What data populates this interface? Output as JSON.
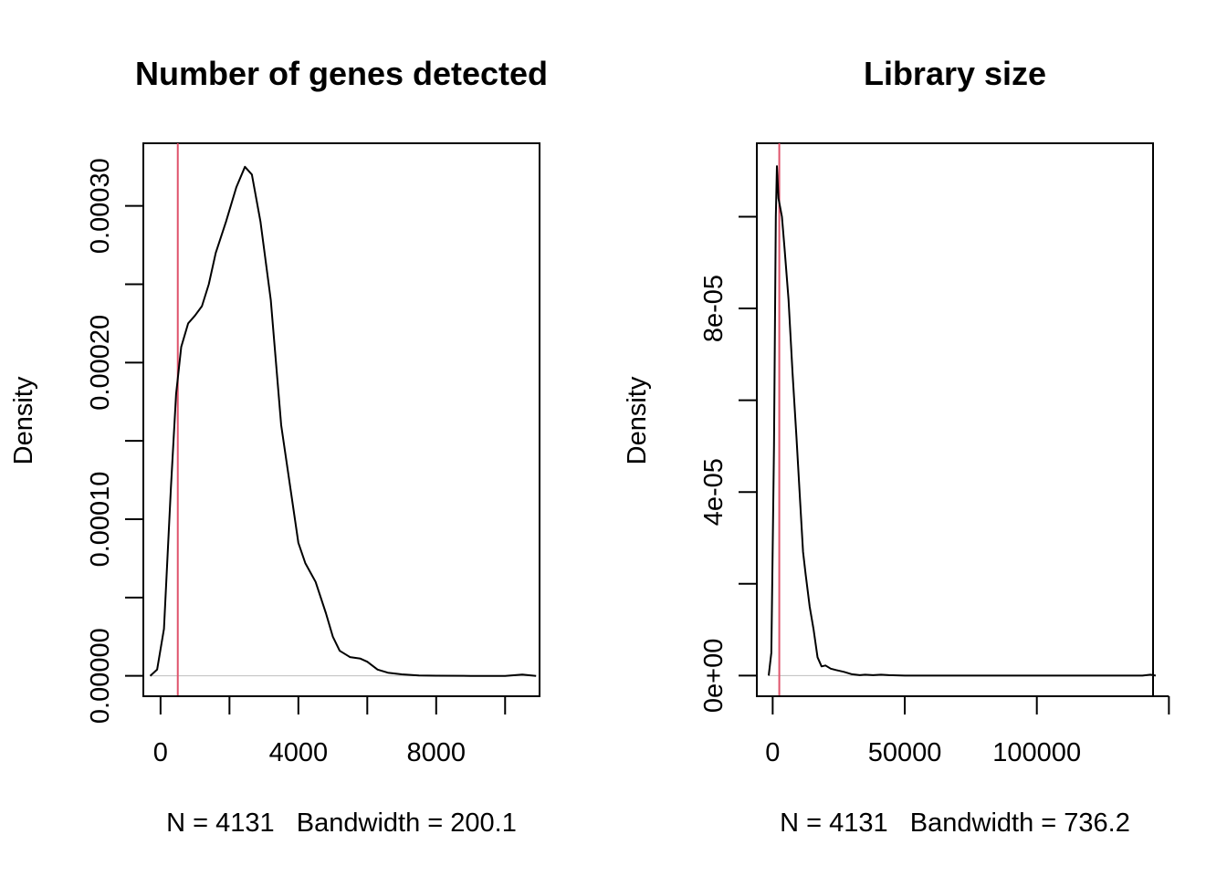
{
  "chart_data": [
    {
      "type": "area",
      "title": "Number of genes detected",
      "xlabel": "N = 4131   Bandwidth = 200.1",
      "ylabel": "Density",
      "xlim": [
        -500,
        11000
      ],
      "ylim": [
        -1.3e-05,
        0.00034
      ],
      "x_ticks": [
        {
          "value": 0,
          "label": "0"
        },
        {
          "value": 2000,
          "label": ""
        },
        {
          "value": 4000,
          "label": "4000"
        },
        {
          "value": 6000,
          "label": ""
        },
        {
          "value": 8000,
          "label": "8000"
        },
        {
          "value": 10000,
          "label": ""
        }
      ],
      "y_ticks": [
        {
          "value": 0,
          "label": "0.00000"
        },
        {
          "value": 5e-05,
          "label": ""
        },
        {
          "value": 0.0001,
          "label": "0.00010"
        },
        {
          "value": 0.00015,
          "label": ""
        },
        {
          "value": 0.0002,
          "label": "0.00020"
        },
        {
          "value": 0.00025,
          "label": ""
        },
        {
          "value": 0.0003,
          "label": "0.00030"
        }
      ],
      "vline": {
        "x": 500,
        "color": "#DF536B"
      },
      "line_color": "#000000",
      "baseline_color": "#BEBEBE",
      "series": [
        {
          "points": [
            [
              -300,
              0
            ],
            [
              -100,
              4e-06
            ],
            [
              100,
              3e-05
            ],
            [
              300,
              0.00012
            ],
            [
              450,
              0.00018
            ],
            [
              600,
              0.00021
            ],
            [
              800,
              0.000225
            ],
            [
              1000,
              0.00023
            ],
            [
              1200,
              0.000236
            ],
            [
              1400,
              0.00025
            ],
            [
              1600,
              0.00027
            ],
            [
              1900,
              0.00029
            ],
            [
              2200,
              0.000312
            ],
            [
              2450,
              0.000325
            ],
            [
              2650,
              0.00032
            ],
            [
              2900,
              0.00029
            ],
            [
              3200,
              0.00024
            ],
            [
              3500,
              0.00016
            ],
            [
              3800,
              0.000115
            ],
            [
              4000,
              8.5e-05
            ],
            [
              4200,
              7.2e-05
            ],
            [
              4500,
              6e-05
            ],
            [
              4800,
              4e-05
            ],
            [
              5000,
              2.5e-05
            ],
            [
              5200,
              1.6e-05
            ],
            [
              5500,
              1.2e-05
            ],
            [
              5800,
              1.1e-05
            ],
            [
              6000,
              9e-06
            ],
            [
              6300,
              4e-06
            ],
            [
              6600,
              2e-06
            ],
            [
              7000,
              1e-06
            ],
            [
              7500,
              3e-07
            ],
            [
              8000,
              1e-07
            ],
            [
              9000,
              0
            ],
            [
              10000,
              0
            ],
            [
              10500,
              8e-07
            ],
            [
              10900,
              0
            ]
          ]
        }
      ]
    },
    {
      "type": "area",
      "title": "Library size",
      "xlabel": "N = 4131   Bandwidth = 736.2",
      "ylabel": "Density",
      "xlim": [
        -6000,
        144000
      ],
      "ylim": [
        -4.5e-06,
        0.000116
      ],
      "x_ticks": [
        {
          "value": 0,
          "label": "0"
        },
        {
          "value": 50000,
          "label": "50000"
        },
        {
          "value": 100000,
          "label": "100000"
        },
        {
          "value": 150000,
          "label": ""
        }
      ],
      "y_ticks": [
        {
          "value": 0,
          "label": "0e+00"
        },
        {
          "value": 2e-05,
          "label": ""
        },
        {
          "value": 4e-05,
          "label": "4e-05"
        },
        {
          "value": 6e-05,
          "label": ""
        },
        {
          "value": 8e-05,
          "label": "8e-05"
        },
        {
          "value": 0.0001,
          "label": ""
        }
      ],
      "vline": {
        "x": 2500,
        "color": "#DF536B"
      },
      "line_color": "#000000",
      "baseline_color": "#BEBEBE",
      "series": [
        {
          "points": [
            [
              -1500,
              0
            ],
            [
              -500,
              5e-06
            ],
            [
              500,
              5e-05
            ],
            [
              1200,
              0.0001
            ],
            [
              1600,
              0.000111
            ],
            [
              2200,
              0.000104
            ],
            [
              3500,
              0.0001
            ],
            [
              4500,
              9.3e-05
            ],
            [
              6000,
              8.2e-05
            ],
            [
              7500,
              6.6e-05
            ],
            [
              9000,
              5.2e-05
            ],
            [
              10500,
              3.7e-05
            ],
            [
              11500,
              2.7e-05
            ],
            [
              12500,
              2.2e-05
            ],
            [
              14000,
              1.5e-05
            ],
            [
              15500,
              1e-05
            ],
            [
              17000,
              4e-06
            ],
            [
              18500,
              2e-06
            ],
            [
              20000,
              2.2e-06
            ],
            [
              22000,
              1.5e-06
            ],
            [
              24000,
              1.2e-06
            ],
            [
              27000,
              8e-07
            ],
            [
              30000,
              3e-07
            ],
            [
              33000,
              1e-07
            ],
            [
              35000,
              2e-07
            ],
            [
              38000,
              1e-07
            ],
            [
              41000,
              2e-07
            ],
            [
              44000,
              1e-07
            ],
            [
              50000,
              0
            ],
            [
              80000,
              0
            ],
            [
              120000,
              0
            ],
            [
              140000,
              0
            ],
            [
              143000,
              2e-07
            ],
            [
              145000,
              0
            ]
          ]
        }
      ]
    }
  ]
}
